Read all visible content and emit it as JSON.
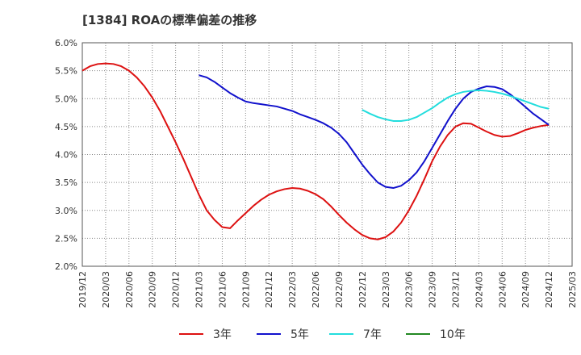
{
  "chart_data": {
    "type": "line",
    "title": "[1384]  ROAの標準偏差の推移",
    "xlabel": "",
    "ylabel": "",
    "ylim": [
      2.0,
      6.0
    ],
    "x_range": [
      "2019/12",
      "2025/03"
    ],
    "grid": true,
    "legend_position": "bottom",
    "y_ticks": [
      "2.0%",
      "2.5%",
      "3.0%",
      "3.5%",
      "4.0%",
      "4.5%",
      "5.0%",
      "5.5%",
      "6.0%"
    ],
    "x_ticks": [
      "2019/12",
      "2020/03",
      "2020/06",
      "2020/09",
      "2020/12",
      "2021/03",
      "2021/06",
      "2021/09",
      "2021/12",
      "2022/03",
      "2022/06",
      "2022/09",
      "2022/12",
      "2023/03",
      "2023/06",
      "2023/09",
      "2023/12",
      "2024/03",
      "2024/06",
      "2024/09",
      "2024/12",
      "2025/03"
    ],
    "series": [
      {
        "name": "3年",
        "color": "#dd1111",
        "points": [
          [
            "2019/12",
            5.5
          ],
          [
            "2020/01",
            5.58
          ],
          [
            "2020/02",
            5.62
          ],
          [
            "2020/03",
            5.63
          ],
          [
            "2020/04",
            5.62
          ],
          [
            "2020/05",
            5.58
          ],
          [
            "2020/06",
            5.5
          ],
          [
            "2020/07",
            5.38
          ],
          [
            "2020/08",
            5.22
          ],
          [
            "2020/09",
            5.02
          ],
          [
            "2020/10",
            4.78
          ],
          [
            "2020/11",
            4.5
          ],
          [
            "2020/12",
            4.22
          ],
          [
            "2021/01",
            3.92
          ],
          [
            "2021/02",
            3.6
          ],
          [
            "2021/03",
            3.28
          ],
          [
            "2021/04",
            3.0
          ],
          [
            "2021/05",
            2.83
          ],
          [
            "2021/06",
            2.7
          ],
          [
            "2021/07",
            2.68
          ],
          [
            "2021/08",
            2.82
          ],
          [
            "2021/09",
            2.95
          ],
          [
            "2021/10",
            3.08
          ],
          [
            "2021/11",
            3.19
          ],
          [
            "2021/12",
            3.28
          ],
          [
            "2022/01",
            3.34
          ],
          [
            "2022/02",
            3.38
          ],
          [
            "2022/03",
            3.4
          ],
          [
            "2022/04",
            3.39
          ],
          [
            "2022/05",
            3.35
          ],
          [
            "2022/06",
            3.29
          ],
          [
            "2022/07",
            3.2
          ],
          [
            "2022/08",
            3.07
          ],
          [
            "2022/09",
            2.92
          ],
          [
            "2022/10",
            2.78
          ],
          [
            "2022/11",
            2.66
          ],
          [
            "2022/12",
            2.56
          ],
          [
            "2023/01",
            2.5
          ],
          [
            "2023/02",
            2.48
          ],
          [
            "2023/03",
            2.52
          ],
          [
            "2023/04",
            2.62
          ],
          [
            "2023/05",
            2.78
          ],
          [
            "2023/06",
            3.0
          ],
          [
            "2023/07",
            3.26
          ],
          [
            "2023/08",
            3.56
          ],
          [
            "2023/09",
            3.88
          ],
          [
            "2023/10",
            4.14
          ],
          [
            "2023/11",
            4.35
          ],
          [
            "2023/12",
            4.5
          ],
          [
            "2024/01",
            4.56
          ],
          [
            "2024/02",
            4.55
          ],
          [
            "2024/03",
            4.48
          ],
          [
            "2024/04",
            4.41
          ],
          [
            "2024/05",
            4.35
          ],
          [
            "2024/06",
            4.32
          ],
          [
            "2024/07",
            4.33
          ],
          [
            "2024/08",
            4.38
          ],
          [
            "2024/09",
            4.44
          ],
          [
            "2024/10",
            4.48
          ],
          [
            "2024/11",
            4.51
          ],
          [
            "2024/12",
            4.53
          ]
        ]
      },
      {
        "name": "5年",
        "color": "#1111cc",
        "points": [
          [
            "2021/03",
            5.42
          ],
          [
            "2021/04",
            5.38
          ],
          [
            "2021/05",
            5.3
          ],
          [
            "2021/06",
            5.2
          ],
          [
            "2021/07",
            5.1
          ],
          [
            "2021/08",
            5.02
          ],
          [
            "2021/09",
            4.95
          ],
          [
            "2021/10",
            4.92
          ],
          [
            "2021/11",
            4.9
          ],
          [
            "2021/12",
            4.88
          ],
          [
            "2022/01",
            4.86
          ],
          [
            "2022/02",
            4.82
          ],
          [
            "2022/03",
            4.78
          ],
          [
            "2022/04",
            4.72
          ],
          [
            "2022/05",
            4.67
          ],
          [
            "2022/06",
            4.62
          ],
          [
            "2022/07",
            4.56
          ],
          [
            "2022/08",
            4.48
          ],
          [
            "2022/09",
            4.37
          ],
          [
            "2022/10",
            4.22
          ],
          [
            "2022/11",
            4.02
          ],
          [
            "2022/12",
            3.82
          ],
          [
            "2023/01",
            3.65
          ],
          [
            "2023/02",
            3.5
          ],
          [
            "2023/03",
            3.42
          ],
          [
            "2023/04",
            3.4
          ],
          [
            "2023/05",
            3.44
          ],
          [
            "2023/06",
            3.54
          ],
          [
            "2023/07",
            3.68
          ],
          [
            "2023/08",
            3.88
          ],
          [
            "2023/09",
            4.12
          ],
          [
            "2023/10",
            4.36
          ],
          [
            "2023/11",
            4.6
          ],
          [
            "2023/12",
            4.82
          ],
          [
            "2024/01",
            5.0
          ],
          [
            "2024/02",
            5.12
          ],
          [
            "2024/03",
            5.18
          ],
          [
            "2024/04",
            5.22
          ],
          [
            "2024/05",
            5.21
          ],
          [
            "2024/06",
            5.17
          ],
          [
            "2024/07",
            5.08
          ],
          [
            "2024/08",
            4.97
          ],
          [
            "2024/09",
            4.85
          ],
          [
            "2024/10",
            4.73
          ],
          [
            "2024/11",
            4.63
          ],
          [
            "2024/12",
            4.53
          ]
        ]
      },
      {
        "name": "7年",
        "color": "#22dddd",
        "points": [
          [
            "2022/12",
            4.8
          ],
          [
            "2023/01",
            4.73
          ],
          [
            "2023/02",
            4.67
          ],
          [
            "2023/03",
            4.63
          ],
          [
            "2023/04",
            4.6
          ],
          [
            "2023/05",
            4.6
          ],
          [
            "2023/06",
            4.62
          ],
          [
            "2023/07",
            4.67
          ],
          [
            "2023/08",
            4.75
          ],
          [
            "2023/09",
            4.83
          ],
          [
            "2023/10",
            4.93
          ],
          [
            "2023/11",
            5.02
          ],
          [
            "2023/12",
            5.08
          ],
          [
            "2024/01",
            5.12
          ],
          [
            "2024/02",
            5.14
          ],
          [
            "2024/03",
            5.15
          ],
          [
            "2024/04",
            5.14
          ],
          [
            "2024/05",
            5.12
          ],
          [
            "2024/06",
            5.09
          ],
          [
            "2024/07",
            5.05
          ],
          [
            "2024/08",
            5.0
          ],
          [
            "2024/09",
            4.95
          ],
          [
            "2024/10",
            4.9
          ],
          [
            "2024/11",
            4.85
          ],
          [
            "2024/12",
            4.82
          ]
        ]
      },
      {
        "name": "10年",
        "color": "#228822",
        "points": []
      }
    ]
  }
}
